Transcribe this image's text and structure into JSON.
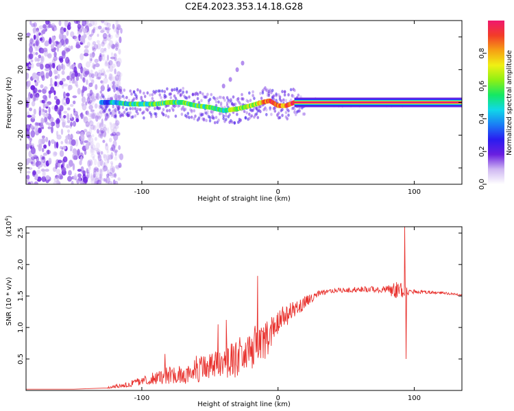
{
  "title": "C2E4.2023.353.14.18.G28",
  "chart_data": [
    {
      "type": "heatmap",
      "xlabel": "Height of straight line (km)",
      "ylabel": "Frequency (Hz)",
      "xlim": [
        -185,
        135
      ],
      "ylim": [
        -50,
        50
      ],
      "xticks": [
        -100,
        0,
        100
      ],
      "yticks": [
        -40,
        -20,
        0,
        20,
        40
      ],
      "colorbar": {
        "label": "Normalized spectral amplitude",
        "range": [
          0,
          1
        ],
        "ticks": [
          "0.0",
          "0.2",
          "0.4",
          "0.6",
          "0.8"
        ],
        "ticks_values": [
          0.0,
          0.2,
          0.4,
          0.6,
          0.8
        ],
        "colormap": [
          "#ffffff",
          "#cfb8f2",
          "#6a1fe0",
          "#2a1cf0",
          "#1a7df5",
          "#10d8e8",
          "#14e864",
          "#8ef014",
          "#f0f014",
          "#f6a014",
          "#f23c28",
          "#f0186e"
        ]
      },
      "noise_region_x": [
        -185,
        -115
      ],
      "trace": {
        "x": [
          -130,
          -120,
          -110,
          -100,
          -90,
          -80,
          -70,
          -60,
          -50,
          -40,
          -30,
          -20,
          -12,
          -6,
          0,
          6,
          12,
          20,
          40,
          60,
          80,
          88,
          92,
          100,
          135
        ],
        "freq": [
          0,
          0,
          -1,
          -1,
          -1,
          0,
          0,
          -2,
          -3,
          -5,
          -4,
          -2,
          0,
          1,
          -2,
          -2,
          0,
          0,
          0,
          0,
          0,
          0,
          0,
          0,
          0
        ],
        "strength": [
          0.3,
          0.45,
          0.5,
          0.55,
          0.55,
          0.55,
          0.55,
          0.55,
          0.55,
          0.55,
          0.6,
          0.65,
          0.75,
          0.9,
          0.85,
          0.85,
          0.95,
          1,
          1,
          1,
          1,
          0.95,
          1,
          1,
          1
        ]
      },
      "faint_branch": {
        "x": [
          -40,
          -35,
          -30,
          -26
        ],
        "freq": [
          10,
          14,
          20,
          24
        ]
      }
    },
    {
      "type": "line",
      "xlabel": "Height of straight line (km)",
      "ylabel": "SNR (10 * v/v)",
      "y_multiplier": "(x10",
      "y_multiplier_exp": "4",
      "y_multiplier_close": ")",
      "xlim": [
        -185,
        135
      ],
      "ylim": [
        0,
        2.6
      ],
      "xticks": [
        -100,
        0,
        100
      ],
      "yticks": [
        0.5,
        1.0,
        1.5,
        2.0,
        2.5
      ],
      "yticks_labels": [
        "0.5",
        "1.0",
        "1.5",
        "2.0",
        "2.5"
      ],
      "color": "#e8302c",
      "baseline": {
        "x": [
          -185,
          -150,
          -125
        ],
        "y": [
          0.02,
          0.02,
          0.04
        ]
      },
      "envelope": {
        "x": [
          -125,
          -110,
          -100,
          -90,
          -80,
          -70,
          -60,
          -50,
          -40,
          -30,
          -20,
          -10,
          0,
          10,
          20,
          30,
          40,
          60,
          80,
          88,
          96,
          100,
          120,
          135
        ],
        "low": [
          0.03,
          0.05,
          0.08,
          0.1,
          0.1,
          0.1,
          0.12,
          0.15,
          0.2,
          0.2,
          0.25,
          0.45,
          0.9,
          1.1,
          1.3,
          1.5,
          1.55,
          1.56,
          1.55,
          1.4,
          1.52,
          1.54,
          1.53,
          1.5
        ],
        "high": [
          0.06,
          0.14,
          0.22,
          0.3,
          0.38,
          0.42,
          0.5,
          0.62,
          0.7,
          0.85,
          1.0,
          1.1,
          1.3,
          1.4,
          1.5,
          1.58,
          1.62,
          1.65,
          1.66,
          1.75,
          1.62,
          1.6,
          1.57,
          1.53
        ]
      },
      "spikes": [
        {
          "x": -83,
          "y": 0.58
        },
        {
          "x": -60,
          "y": 0.55
        },
        {
          "x": -44,
          "y": 1.05
        },
        {
          "x": -38,
          "y": 1.12
        },
        {
          "x": -15,
          "y": 1.82
        },
        {
          "x": 87,
          "y": 1.72
        },
        {
          "x": 93,
          "y": 2.6
        },
        {
          "x": 94,
          "y": 0.5
        }
      ]
    }
  ]
}
